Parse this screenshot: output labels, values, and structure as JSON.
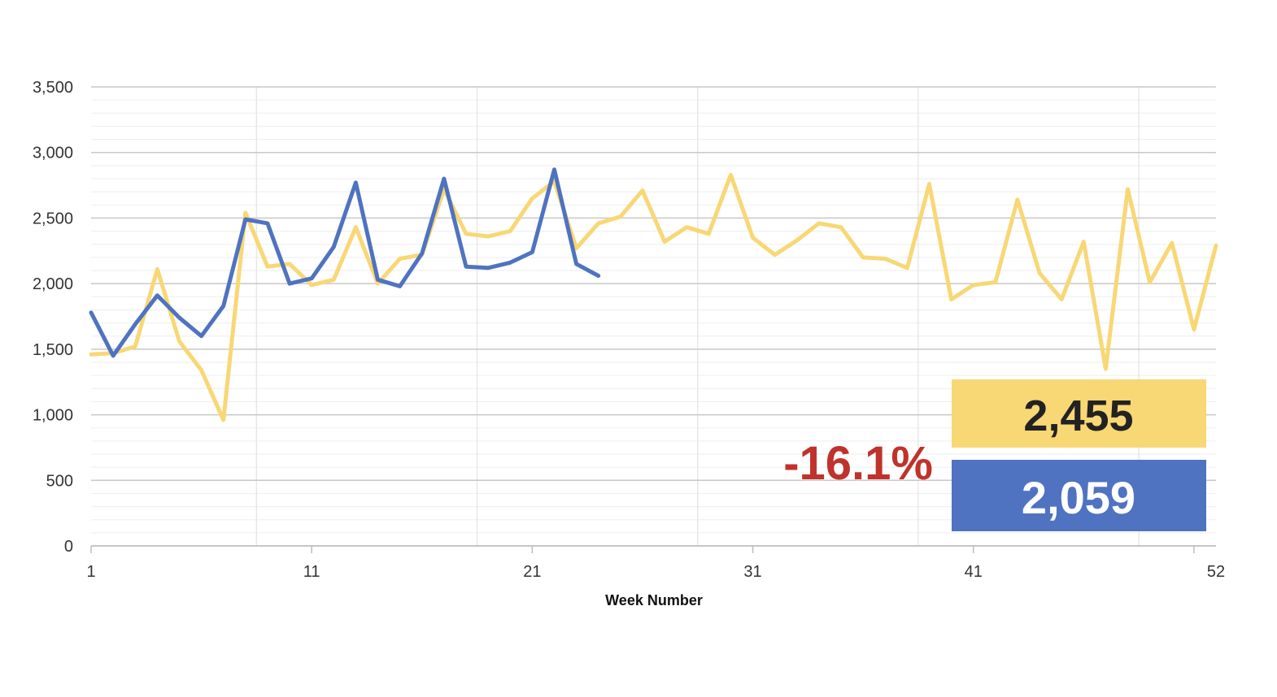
{
  "chart_data": {
    "type": "line",
    "xlabel": "Week Number",
    "ylabel": "",
    "xlim": [
      1,
      52
    ],
    "ylim": [
      0,
      3500
    ],
    "x_ticks": [
      "1",
      "11",
      "21",
      "31",
      "41",
      "52"
    ],
    "y_ticks": [
      "0",
      "500",
      "1,000",
      "1,500",
      "2,000",
      "2,500",
      "3,000",
      "3,500"
    ],
    "grid": true,
    "colors": {
      "yellow": "#F8D775",
      "blue": "#4F73C0",
      "red": "#C0322C"
    },
    "series": [
      {
        "color": "#F8D775",
        "x": [
          1,
          2,
          3,
          4,
          5,
          6,
          7,
          8,
          9,
          10,
          11,
          12,
          13,
          14,
          15,
          16,
          17,
          18,
          19,
          20,
          21,
          22,
          23,
          24,
          25,
          26,
          27,
          28,
          29,
          30,
          31,
          32,
          33,
          34,
          35,
          36,
          37,
          38,
          39,
          40,
          41,
          42,
          43,
          44,
          45,
          46,
          47,
          48,
          49,
          50,
          51,
          52
        ],
        "values": [
          1460,
          1470,
          1520,
          2110,
          1560,
          1340,
          960,
          2540,
          2130,
          2150,
          1990,
          2030,
          2430,
          2000,
          2190,
          2220,
          2720,
          2380,
          2360,
          2400,
          2650,
          2780,
          2270,
          2460,
          2510,
          2710,
          2320,
          2430,
          2380,
          2830,
          2350,
          2220,
          2330,
          2460,
          2430,
          2200,
          2190,
          2120,
          2760,
          1880,
          1990,
          2010,
          2640,
          2080,
          1880,
          2320,
          1350,
          2720,
          2010,
          2310,
          1650,
          2290
        ]
      },
      {
        "color": "#4F73C0",
        "x": [
          1,
          2,
          3,
          4,
          5,
          6,
          7,
          8,
          9,
          10,
          11,
          12,
          13,
          14,
          15,
          16,
          17,
          18,
          19,
          20,
          21,
          22,
          23,
          24
        ],
        "values": [
          1780,
          1450,
          1690,
          1910,
          1740,
          1600,
          1830,
          2490,
          2460,
          2000,
          2040,
          2280,
          2770,
          2030,
          1980,
          2230,
          2800,
          2130,
          2120,
          2160,
          2240,
          2870,
          2150,
          2060
        ]
      }
    ],
    "annotations": {
      "yellow_value": "2,455",
      "blue_value": "2,059",
      "change": "-16.1%"
    }
  }
}
